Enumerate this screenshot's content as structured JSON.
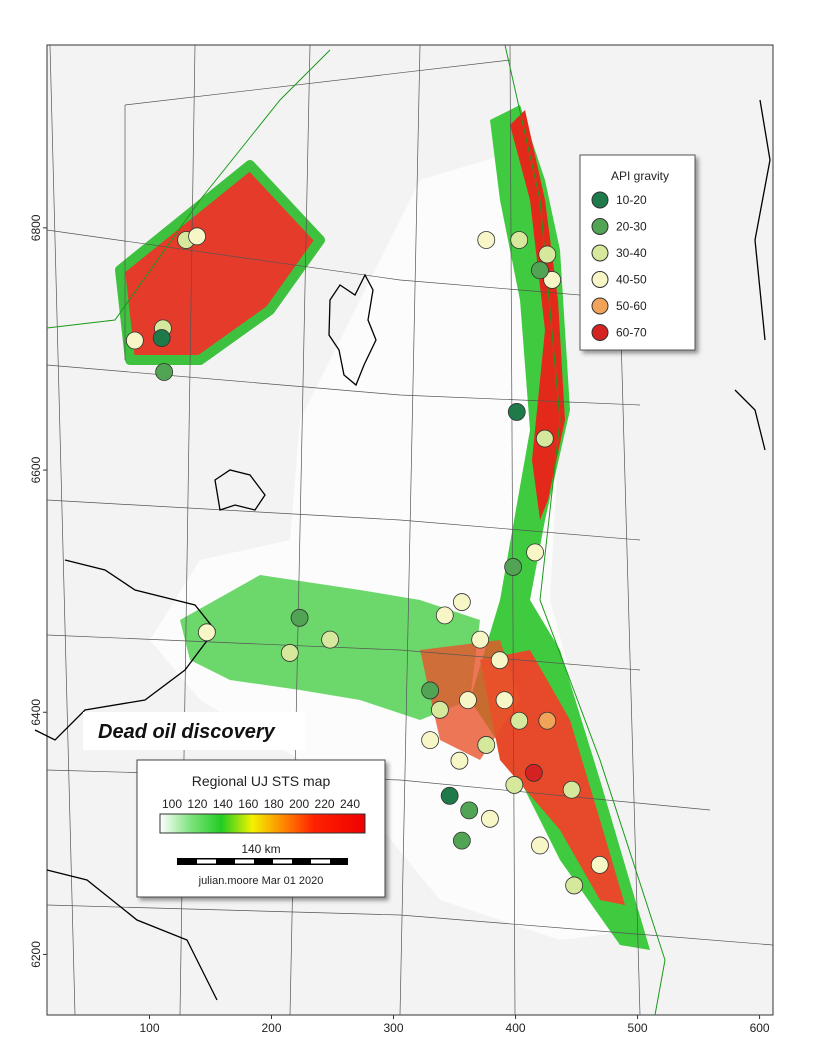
{
  "map": {
    "xlim": [
      16,
      611
    ],
    "ylim": [
      6150,
      6951
    ],
    "xticks": [
      100,
      200,
      300,
      400,
      500,
      600
    ],
    "yticks": [
      6200,
      6400,
      6600,
      6800
    ],
    "annotation": "Dead oil discovery",
    "api_legend": {
      "title": "API gravity",
      "classes": [
        {
          "label": "10-20",
          "color": "#1f7a4a"
        },
        {
          "label": "20-30",
          "color": "#52a455"
        },
        {
          "label": "30-40",
          "color": "#d6e89c"
        },
        {
          "label": "40-50",
          "color": "#f6f6c6"
        },
        {
          "label": "50-60",
          "color": "#f2a35a"
        },
        {
          "label": "60-70",
          "color": "#d42222"
        }
      ]
    },
    "colorbar": {
      "title": "Regional UJ STS map",
      "ticks": [
        100,
        120,
        140,
        160,
        180,
        200,
        220,
        240
      ]
    },
    "scale_label": "140 km",
    "credit": "julian.moore Mar 01 2020",
    "wells": [
      {
        "x": 130,
        "y": 6790,
        "class": 2
      },
      {
        "x": 139,
        "y": 6793,
        "class": 3
      },
      {
        "x": 111,
        "y": 6717,
        "class": 2
      },
      {
        "x": 88,
        "y": 6707,
        "class": 3
      },
      {
        "x": 110,
        "y": 6709,
        "class": 0
      },
      {
        "x": 112,
        "y": 6681,
        "class": 1
      },
      {
        "x": 401,
        "y": 6648,
        "class": 0
      },
      {
        "x": 424,
        "y": 6626,
        "class": 2
      },
      {
        "x": 376,
        "y": 6790,
        "class": 3
      },
      {
        "x": 403,
        "y": 6790,
        "class": 2
      },
      {
        "x": 426,
        "y": 6778,
        "class": 2
      },
      {
        "x": 430,
        "y": 6757,
        "class": 3
      },
      {
        "x": 420,
        "y": 6765,
        "class": 1
      },
      {
        "x": 398,
        "y": 6520,
        "class": 1
      },
      {
        "x": 416,
        "y": 6532,
        "class": 3
      },
      {
        "x": 147,
        "y": 6466,
        "class": 3
      },
      {
        "x": 223,
        "y": 6478,
        "class": 1
      },
      {
        "x": 215,
        "y": 6449,
        "class": 2
      },
      {
        "x": 248,
        "y": 6460,
        "class": 2
      },
      {
        "x": 356,
        "y": 6491,
        "class": 3
      },
      {
        "x": 342,
        "y": 6480,
        "class": 3
      },
      {
        "x": 371,
        "y": 6460,
        "class": 3
      },
      {
        "x": 387,
        "y": 6443,
        "class": 3
      },
      {
        "x": 330,
        "y": 6418,
        "class": 1
      },
      {
        "x": 338,
        "y": 6402,
        "class": 2
      },
      {
        "x": 361,
        "y": 6410,
        "class": 3
      },
      {
        "x": 391,
        "y": 6410,
        "class": 3
      },
      {
        "x": 403,
        "y": 6393,
        "class": 2
      },
      {
        "x": 426,
        "y": 6393,
        "class": 4
      },
      {
        "x": 330,
        "y": 6377,
        "class": 3
      },
      {
        "x": 376,
        "y": 6373,
        "class": 2
      },
      {
        "x": 354,
        "y": 6360,
        "class": 3
      },
      {
        "x": 346,
        "y": 6331,
        "class": 0
      },
      {
        "x": 362,
        "y": 6319,
        "class": 1
      },
      {
        "x": 356,
        "y": 6294,
        "class": 1
      },
      {
        "x": 379,
        "y": 6312,
        "class": 3
      },
      {
        "x": 420,
        "y": 6290,
        "class": 3
      },
      {
        "x": 446,
        "y": 6336,
        "class": 2
      },
      {
        "x": 448,
        "y": 6257,
        "class": 2
      },
      {
        "x": 469,
        "y": 6274,
        "class": 3
      },
      {
        "x": 399,
        "y": 6340,
        "class": 2
      },
      {
        "x": 415,
        "y": 6350,
        "class": 5
      }
    ]
  }
}
